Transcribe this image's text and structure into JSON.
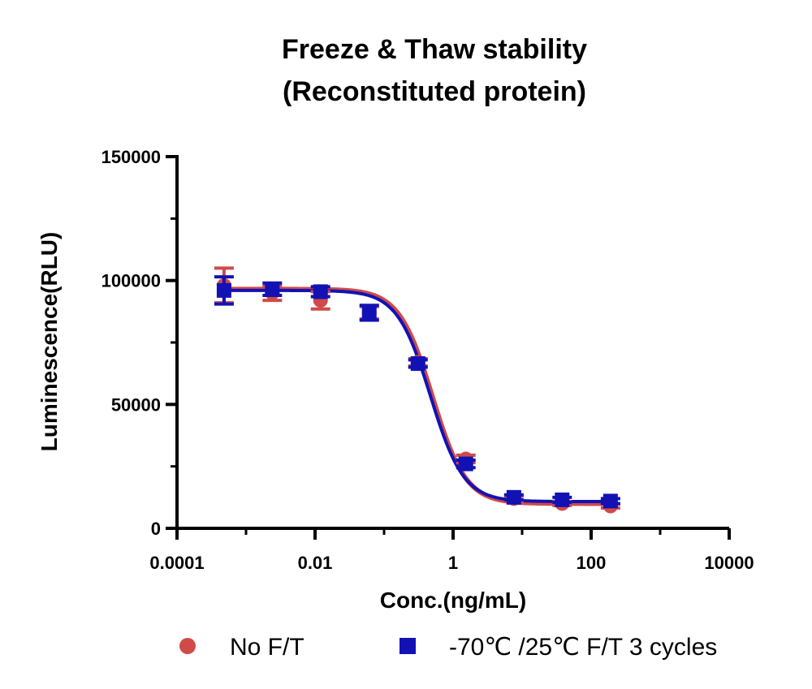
{
  "chart_data": {
    "type": "scatter",
    "title": "Freeze & Thaw stability",
    "subtitle": "(Reconstituted protein)",
    "xlabel": "Conc.(ng/mL)",
    "ylabel": "Luminescence(RLU)",
    "xscale": "log",
    "xlim": [
      0.0001,
      10000
    ],
    "ylim": [
      0,
      150000
    ],
    "x_ticks": [
      "0.0001",
      "0.01",
      "1",
      "100",
      "10000"
    ],
    "y_ticks": [
      "0",
      "50000",
      "100000",
      "150000"
    ],
    "legend_position": "bottom",
    "grid": false,
    "series": [
      {
        "name": "No F/T",
        "color": "#d14a4a",
        "marker": "circle",
        "x": [
          0.00048,
          0.0024,
          0.012,
          0.061,
          0.31,
          1.53,
          7.6,
          38,
          191
        ],
        "y": [
          98000,
          95000,
          92000,
          87000,
          67000,
          28000,
          12000,
          10000,
          9000
        ],
        "error": [
          7000,
          3000,
          3500,
          2500,
          1500,
          1500,
          1000,
          800,
          800
        ],
        "fit": {
          "top": 96500,
          "bottom": 10000,
          "ec50": 0.5,
          "hill": 1.8
        }
      },
      {
        "name": "-70℃ /25℃  F/T 3 cycles",
        "color": "#1212b4",
        "marker": "square",
        "x": [
          0.00048,
          0.0024,
          0.012,
          0.061,
          0.31,
          1.53,
          7.6,
          38,
          191
        ],
        "y": [
          96000,
          96500,
          95500,
          87000,
          66500,
          26000,
          12500,
          11500,
          11000
        ],
        "error": [
          5500,
          2500,
          2000,
          3000,
          1500,
          1500,
          1000,
          1000,
          1000
        ],
        "fit": {
          "top": 96000,
          "bottom": 10800,
          "ec50": 0.47,
          "hill": 1.8
        }
      }
    ]
  }
}
